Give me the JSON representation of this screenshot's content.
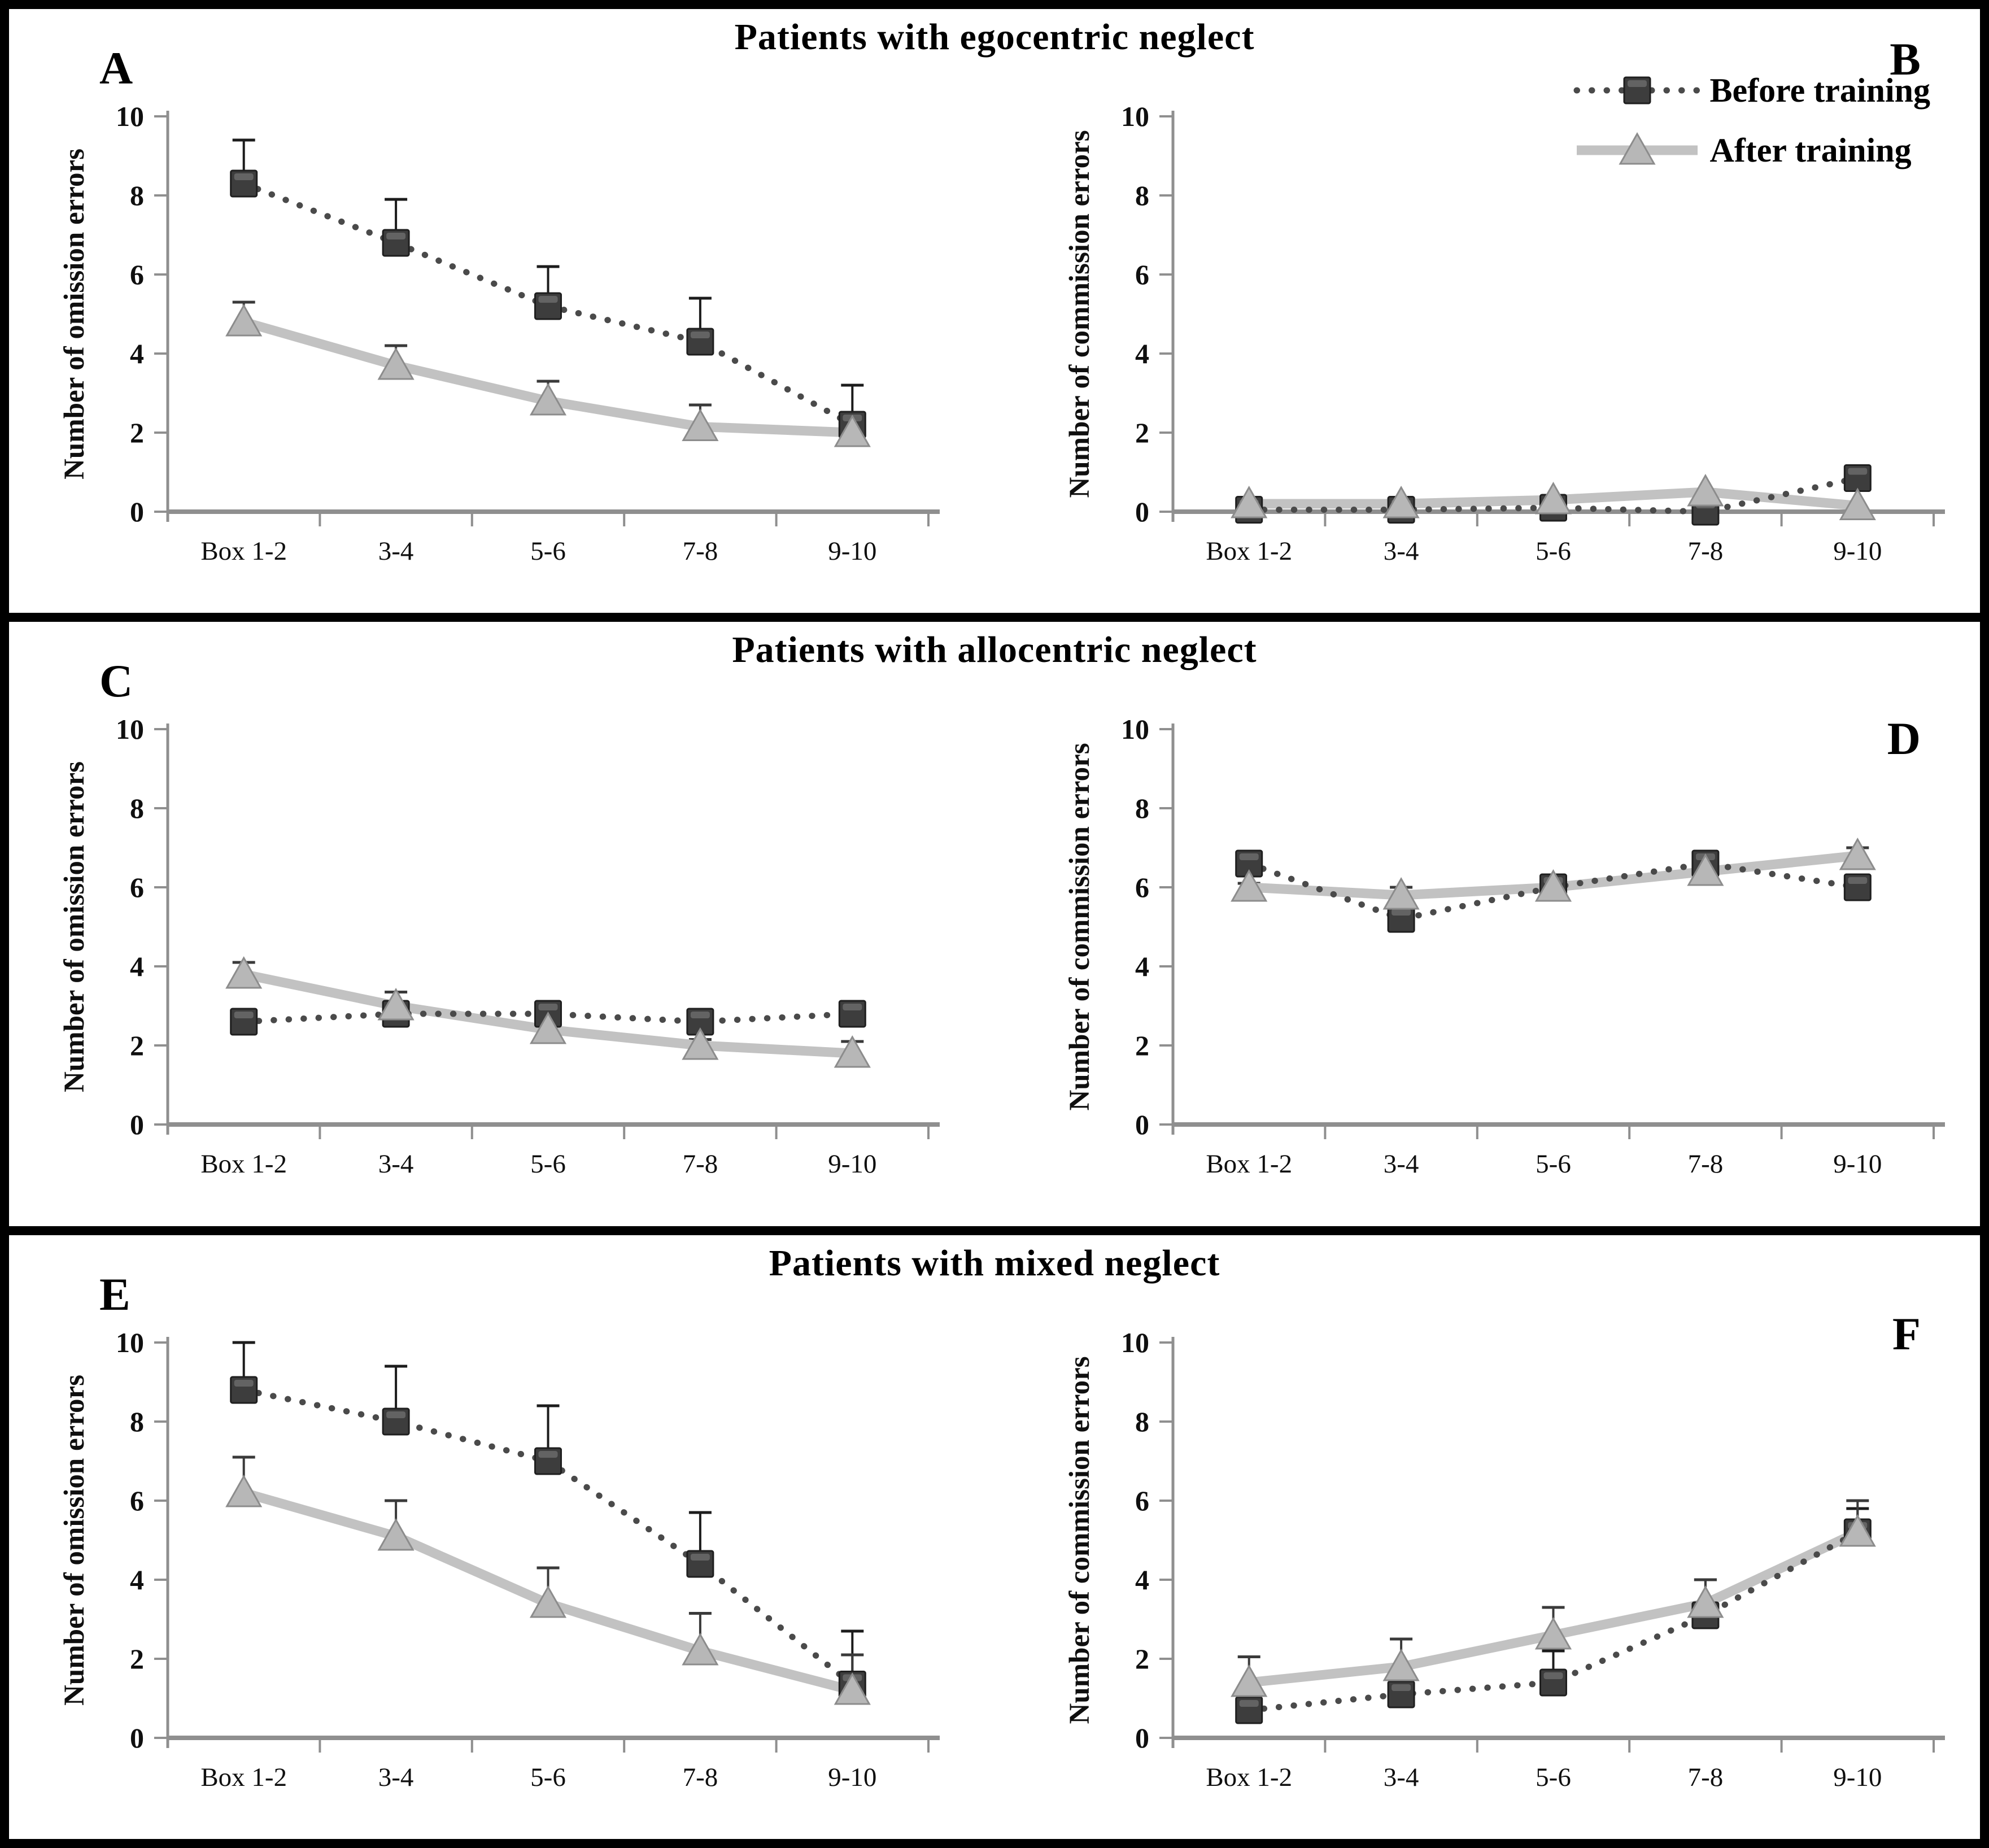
{
  "figure": {
    "rows": [
      {
        "title": "Patients with egocentric neglect",
        "left_label": "A",
        "right_label": "B"
      },
      {
        "title": "Patients with allocentric neglect",
        "left_label": "C",
        "right_label": "D"
      },
      {
        "title": "Patients with mixed neglect",
        "left_label": "E",
        "right_label": "F"
      }
    ],
    "legend": [
      {
        "label": "Before training",
        "series_key": "before"
      },
      {
        "label": "After training",
        "series_key": "after"
      }
    ]
  },
  "styles": {
    "axis_color": "#8f8f8f",
    "tick_text_color": "#0f0f0f",
    "before": {
      "line_color": "#4a4a4a",
      "line_style": "dotted",
      "marker": "square",
      "marker_fill": "#3d3d3d",
      "marker_stroke": "#1f1f1f",
      "error_color": "#1c1c1c"
    },
    "after": {
      "line_color": "#c2c2c2",
      "line_style": "solid",
      "marker": "triangle",
      "marker_fill": "#b7b7b7",
      "marker_stroke": "#8c8c8c",
      "error_color": "#3a3a3a"
    }
  },
  "chart_data": [
    {
      "panel": "A",
      "type": "line",
      "categories": [
        "Box 1-2",
        "3-4",
        "5-6",
        "7-8",
        "9-10"
      ],
      "xlabel": "",
      "ylabel": "Number of omission errors",
      "ylim": [
        0,
        10
      ],
      "yticks": [
        0,
        2,
        4,
        6,
        8,
        10
      ],
      "grid": false,
      "series": [
        {
          "name": "Before training",
          "key": "before",
          "values": [
            8.3,
            6.8,
            5.2,
            4.3,
            2.2
          ],
          "errors_up": [
            1.1,
            1.1,
            1.0,
            1.1,
            1.0
          ]
        },
        {
          "name": "After training",
          "key": "after",
          "values": [
            4.8,
            3.7,
            2.8,
            2.15,
            2.0
          ],
          "errors_up": [
            0.5,
            0.5,
            0.5,
            0.55,
            0.5
          ]
        }
      ]
    },
    {
      "panel": "B",
      "type": "line",
      "categories": [
        "Box 1-2",
        "3-4",
        "5-6",
        "7-8",
        "9-10"
      ],
      "xlabel": "",
      "ylabel": "Number of commission errors",
      "ylim": [
        0,
        10
      ],
      "yticks": [
        0,
        2,
        4,
        6,
        8,
        10
      ],
      "grid": false,
      "series": [
        {
          "name": "Before training",
          "key": "before",
          "values": [
            0.05,
            0.05,
            0.1,
            0.0,
            0.85
          ],
          "errors_up": [
            0,
            0,
            0,
            0,
            0
          ]
        },
        {
          "name": "After training",
          "key": "after",
          "values": [
            0.2,
            0.2,
            0.3,
            0.5,
            0.15
          ],
          "errors_up": [
            0,
            0,
            0,
            0,
            0
          ]
        }
      ]
    },
    {
      "panel": "C",
      "type": "line",
      "categories": [
        "Box 1-2",
        "3-4",
        "5-6",
        "7-8",
        "9-10"
      ],
      "xlabel": "",
      "ylabel": "Number of omission errors",
      "ylim": [
        0,
        10
      ],
      "yticks": [
        0,
        2,
        4,
        6,
        8,
        10
      ],
      "grid": false,
      "series": [
        {
          "name": "Before training",
          "key": "before",
          "values": [
            2.6,
            2.8,
            2.8,
            2.6,
            2.8
          ],
          "errors_up": [
            0.1,
            0.1,
            0.25,
            0.25,
            0.25
          ]
        },
        {
          "name": "After training",
          "key": "after",
          "values": [
            3.8,
            3.0,
            2.4,
            2.0,
            1.8
          ],
          "errors_up": [
            0.3,
            0.35,
            0.15,
            0.15,
            0.3
          ]
        }
      ]
    },
    {
      "panel": "D",
      "type": "line",
      "categories": [
        "Box 1-2",
        "3-4",
        "5-6",
        "7-8",
        "9-10"
      ],
      "xlabel": "",
      "ylabel": "Number of commission errors",
      "ylim": [
        0,
        10
      ],
      "yticks": [
        0,
        2,
        4,
        6,
        8,
        10
      ],
      "grid": false,
      "series": [
        {
          "name": "Before training",
          "key": "before",
          "values": [
            6.6,
            5.2,
            6.0,
            6.6,
            6.0
          ],
          "errors_up": [
            0.15,
            0.15,
            0.15,
            0.15,
            0.15
          ]
        },
        {
          "name": "After training",
          "key": "after",
          "values": [
            6.0,
            5.8,
            6.0,
            6.4,
            6.8
          ],
          "errors_up": [
            0.1,
            0.2,
            0.1,
            0.1,
            0.2
          ]
        }
      ]
    },
    {
      "panel": "E",
      "type": "line",
      "categories": [
        "Box 1-2",
        "3-4",
        "5-6",
        "7-8",
        "9-10"
      ],
      "xlabel": "",
      "ylabel": "Number of omission errors",
      "ylim": [
        0,
        10
      ],
      "yticks": [
        0,
        2,
        4,
        6,
        8,
        10
      ],
      "grid": false,
      "series": [
        {
          "name": "Before training",
          "key": "before",
          "values": [
            8.8,
            8.0,
            7.0,
            4.4,
            1.35
          ],
          "errors_up": [
            1.2,
            1.4,
            1.4,
            1.3,
            1.35
          ]
        },
        {
          "name": "After training",
          "key": "after",
          "values": [
            6.2,
            5.1,
            3.4,
            2.2,
            1.2
          ],
          "errors_up": [
            0.9,
            0.9,
            0.9,
            0.95,
            0.9
          ]
        }
      ]
    },
    {
      "panel": "F",
      "type": "line",
      "categories": [
        "Box 1-2",
        "3-4",
        "5-6",
        "7-8",
        "9-10"
      ],
      "xlabel": "",
      "ylabel": "Number of commission errors",
      "ylim": [
        0,
        10
      ],
      "yticks": [
        0,
        2,
        4,
        6,
        8,
        10
      ],
      "grid": false,
      "series": [
        {
          "name": "Before training",
          "key": "before",
          "values": [
            0.7,
            1.1,
            1.4,
            3.1,
            5.2
          ],
          "errors_up": [
            0.35,
            0.25,
            0.8,
            0.9,
            0.6
          ]
        },
        {
          "name": "After training",
          "key": "after",
          "values": [
            1.4,
            1.8,
            2.6,
            3.4,
            5.2
          ],
          "errors_up": [
            0.65,
            0.7,
            0.7,
            0.6,
            0.8
          ]
        }
      ]
    }
  ]
}
